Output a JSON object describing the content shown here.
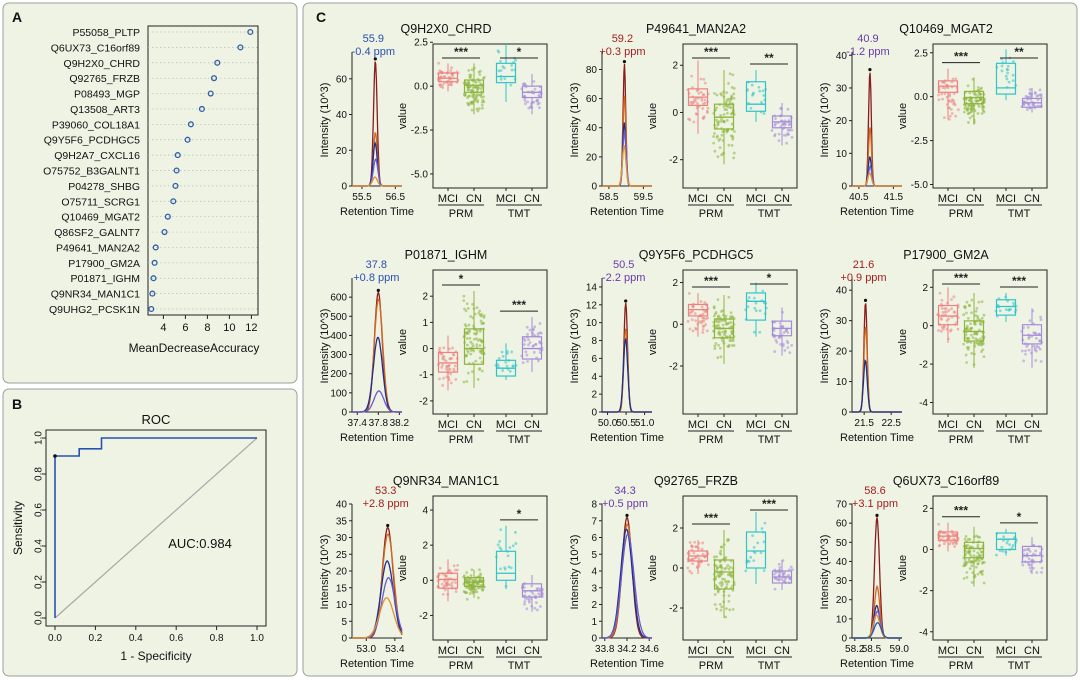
{
  "figure": {
    "panel_labels": [
      "A",
      "B",
      "C"
    ],
    "colors": {
      "panel_bg": "#eef3e4",
      "panel_border": "#9aa29a",
      "dot": "#2f5da8",
      "sig": "#222222",
      "roc_line": "#2853b3",
      "diag": "#a8a8a8",
      "chrom": [
        "#8a1c1c",
        "#d2691e",
        "#1f2f8c",
        "#6a5acd",
        "#e0942a",
        "#2a5b9c"
      ],
      "MCI_PRM": "#f08080",
      "CN_PRM": "#8db53c",
      "MCI_TMT": "#30c4c9",
      "CN_TMT": "#a58bd9",
      "label_blue": "#2c4fae",
      "label_red": "#a31f1f",
      "label_purple": "#6a3aa8"
    }
  },
  "chart_data": [
    {
      "panel": "A",
      "type": "scatter",
      "title": "",
      "xlabel": "MeanDecreaseAccuracy",
      "ylabel": "",
      "xlim": [
        2.6,
        12.6
      ],
      "xticks": [
        4,
        6,
        8,
        10,
        12
      ],
      "categories": [
        "P55058_PLTP",
        "Q6UX73_C16orf89",
        "Q9H2X0_CHRD",
        "Q92765_FRZB",
        "P08493_MGP",
        "Q13508_ART3",
        "P39060_COL18A1",
        "Q9Y5F6_PCDHGC5",
        "Q9H2A7_CXCL16",
        "O75752_B3GALNT1",
        "P04278_SHBG",
        "O75711_SCRG1",
        "Q10469_MGAT2",
        "Q86SF2_GALNT7",
        "P49641_MAN2A2",
        "P17900_GM2A",
        "P01871_IGHM",
        "Q9NR34_MAN1C1",
        "Q9UHG2_PCSK1N"
      ],
      "values": [
        11.9,
        11.0,
        8.9,
        8.6,
        8.3,
        7.5,
        6.5,
        6.2,
        5.3,
        5.2,
        5.1,
        4.9,
        4.4,
        4.1,
        3.3,
        3.2,
        3.1,
        3.0,
        2.9
      ]
    },
    {
      "panel": "B",
      "type": "line",
      "title": "ROC",
      "xlabel": "1 - Specificity",
      "ylabel": "Sensitivity",
      "xlim": [
        0,
        1
      ],
      "ylim": [
        0,
        1
      ],
      "ticks": [
        "0.0",
        "0.2",
        "0.4",
        "0.6",
        "0.8",
        "1.0"
      ],
      "annotation": "AUC:0.984",
      "x": [
        0,
        0,
        0.01,
        0.12,
        0.12,
        0.23,
        0.23,
        1.0
      ],
      "y": [
        0,
        0.9,
        0.9,
        0.9,
        0.94,
        0.94,
        1.0,
        1.0
      ]
    },
    {
      "panel": "C",
      "type": "area",
      "box_ylabel": "value",
      "chrom_ylabel": "Intensity (10^3)",
      "chrom_xlabel": "Retention Time",
      "groups": [
        "PRM",
        "TMT"
      ],
      "box_categories": [
        "MCI",
        "CN",
        "MCI",
        "CN"
      ],
      "proteins": [
        {
          "name": "Q9H2X0_CHRD",
          "label_lines": [
            "55.9",
            "-0.4 ppm"
          ],
          "label_color": "blue",
          "chrom": {
            "xlim": [
              55.2,
              56.7
            ],
            "xticks": [
              55.5,
              56.5
            ],
            "xtick_labels": [
              "55.5",
              "56.5"
            ],
            "ylim": [
              0,
              75
            ],
            "yticks": [
              0,
              20,
              40,
              60
            ],
            "center": 55.9,
            "sigma": 0.055,
            "heights": [
              70,
              30,
              24,
              15,
              5
            ]
          },
          "box": {
            "ylim": [
              -5.8,
              2.4
            ],
            "yticks": [
              -5.0,
              -2.5,
              0.0,
              2.5
            ],
            "ytick_labels": [
              "-5.0",
              "-2.5",
              "0.0",
              "2.5"
            ],
            "stats": [
              [
                -0.3,
                0.25,
                0.45,
                0.75,
                1.3
              ],
              [
                -1.6,
                -0.35,
                0.05,
                0.35,
                1.3
              ],
              [
                -0.9,
                0.2,
                0.55,
                1.3,
                2.4
              ],
              [
                -1.6,
                -0.65,
                -0.35,
                0.0,
                0.7
              ]
            ],
            "sig": [
              "***",
              "*"
            ]
          }
        },
        {
          "name": "P49641_MAN2A2",
          "label_lines": [
            "59.2",
            "+0.3 ppm"
          ],
          "label_color": "red",
          "chrom": {
            "xlim": [
              58.3,
              59.75
            ],
            "xticks": [
              58.5,
              59.5
            ],
            "xtick_labels": [
              "58.5",
              "59.5"
            ],
            "ylim": [
              0,
              92
            ],
            "yticks": [
              0,
              20,
              40,
              60,
              80
            ],
            "center": 58.95,
            "sigma": 0.04,
            "heights": [
              84,
              62,
              44,
              38,
              28
            ]
          },
          "box": {
            "ylim": [
              -3.2,
              2.9
            ],
            "yticks": [
              -2,
              0,
              2
            ],
            "ytick_labels": [
              "-2",
              "0",
              "2"
            ],
            "stats": [
              [
                -0.9,
                0.3,
                0.65,
                1.0,
                2.2
              ],
              [
                -2.2,
                -0.7,
                -0.2,
                0.35,
                1.8
              ],
              [
                -0.4,
                0.05,
                0.35,
                1.3,
                1.8
              ],
              [
                -1.4,
                -0.65,
                -0.4,
                -0.15,
                0.4
              ]
            ],
            "sig": [
              "***",
              "**"
            ]
          }
        },
        {
          "name": "Q10469_MGAT2",
          "label_lines": [
            "40.9",
            "-1.2 ppm"
          ],
          "label_color": "purple",
          "chrom": {
            "xlim": [
              40.3,
              41.75
            ],
            "xticks": [
              40.5,
              41.5
            ],
            "xtick_labels": [
              "40.5",
              "41.5"
            ],
            "ylim": [
              0,
              41
            ],
            "yticks": [
              0,
              10,
              20,
              30,
              40
            ],
            "center": 40.82,
            "sigma": 0.04,
            "heights": [
              35,
              18,
              9,
              6,
              4
            ]
          },
          "box": {
            "ylim": [
              -5.2,
              3.0
            ],
            "yticks": [
              -5.0,
              -2.5,
              0.0,
              2.5
            ],
            "ytick_labels": [
              "-5.0",
              "-2.5",
              "0.0",
              "2.5"
            ],
            "stats": [
              [
                -1.3,
                0.25,
                0.6,
                0.9,
                1.6
              ],
              [
                -1.6,
                -0.4,
                -0.05,
                0.3,
                1.1
              ],
              [
                -0.2,
                0.15,
                0.5,
                1.9,
                2.7
              ],
              [
                -0.9,
                -0.6,
                -0.35,
                -0.1,
                0.5
              ]
            ],
            "sig": [
              "***",
              "**"
            ]
          }
        },
        {
          "name": "P01871_IGHM",
          "label_lines": [
            "37.8",
            "+0.8 ppm"
          ],
          "label_color": "blue",
          "chrom": {
            "xlim": [
              37.3,
              38.25
            ],
            "xticks": [
              37.4,
              37.8,
              38.2
            ],
            "xtick_labels": [
              "37.4",
              "37.8",
              "38.2"
            ],
            "ylim": [
              0,
              700
            ],
            "yticks": [
              0,
              100,
              200,
              300,
              400,
              500,
              600
            ],
            "center": 37.8,
            "sigma": 0.075,
            "heights": [
              625,
              590,
              390,
              110
            ]
          },
          "box": {
            "ylim": [
              -2.5,
              3.0
            ],
            "yticks": [
              -2,
              -1,
              0,
              1,
              2
            ],
            "ytick_labels": [
              "-2",
              "-1",
              "0",
              "1",
              "2"
            ],
            "stats": [
              [
                -1.6,
                -0.9,
                -0.55,
                -0.15,
                0.5
              ],
              [
                -1.5,
                -0.6,
                0.0,
                0.75,
                2.2
              ],
              [
                -1.2,
                -1.05,
                -0.75,
                -0.45,
                0.2
              ],
              [
                -0.9,
                -0.4,
                0.0,
                0.45,
                1.2
              ]
            ],
            "sig": [
              "*",
              "***"
            ]
          }
        },
        {
          "name": "Q9Y5F6_PCDHGC5",
          "label_lines": [
            "50.5",
            "-2.2 ppm"
          ],
          "label_color": "purple",
          "chrom": {
            "xlim": [
              49.85,
              51.2
            ],
            "xticks": [
              50.0,
              50.5,
              51.0
            ],
            "xtick_labels": [
              "50.0",
              "50.5",
              "51.0"
            ],
            "ylim": [
              0,
              15
            ],
            "yticks": [
              0,
              2,
              4,
              6,
              8,
              10,
              12,
              14
            ],
            "center": 50.49,
            "sigma": 0.05,
            "heights": [
              12.2,
              9.3,
              8.2
            ]
          },
          "box": {
            "ylim": [
              -4.3,
              2.6
            ],
            "yticks": [
              -2,
              0,
              2
            ],
            "ytick_labels": [
              "-2",
              "0",
              "2"
            ],
            "stats": [
              [
                -0.6,
                0.4,
                0.7,
                0.95,
                1.5
              ],
              [
                -1.9,
                -0.65,
                -0.2,
                0.25,
                1.4
              ],
              [
                -0.6,
                0.2,
                1.1,
                1.5,
                2.0
              ],
              [
                -1.5,
                -0.55,
                -0.2,
                0.15,
                0.8
              ]
            ],
            "sig": [
              "***",
              "*"
            ]
          }
        },
        {
          "name": "P17900_GM2A",
          "label_lines": [
            "21.6",
            "+0.9 ppm"
          ],
          "label_color": "red",
          "chrom": {
            "xlim": [
              21.05,
              22.9
            ],
            "xticks": [
              21.5,
              22.5
            ],
            "xtick_labels": [
              "21.5",
              "22.5"
            ],
            "ylim": [
              0,
              44
            ],
            "yticks": [
              0,
              10,
              20,
              30,
              40
            ],
            "center": 21.55,
            "sigma": 0.06,
            "heights": [
              36,
              28,
              17
            ]
          },
          "box": {
            "ylim": [
              -4.6,
              2.9
            ],
            "yticks": [
              -4,
              -2,
              0,
              2
            ],
            "ytick_labels": [
              "-4",
              "-2",
              "0",
              "2"
            ],
            "stats": [
              [
                -0.9,
                0.05,
                0.5,
                1.05,
                2.0
              ],
              [
                -2.2,
                -0.8,
                -0.3,
                0.25,
                1.7
              ],
              [
                0.2,
                0.55,
                1.0,
                1.35,
                1.7
              ],
              [
                -2.2,
                -0.95,
                -0.5,
                0.05,
                0.9
              ]
            ],
            "sig": [
              "***",
              "***"
            ]
          }
        },
        {
          "name": "Q9NR34_MAN1C1",
          "label_lines": [
            "53.3",
            "+2.8 ppm"
          ],
          "label_color": "red",
          "chrom": {
            "xlim": [
              52.8,
              53.5
            ],
            "xticks": [
              53.0,
              53.4
            ],
            "xtick_labels": [
              "53.0",
              "53.4"
            ],
            "ylim": [
              0,
              40
            ],
            "yticks": [
              0,
              5,
              10,
              15,
              20,
              25,
              30,
              35,
              40
            ],
            "center": 53.3,
            "sigma": 0.075,
            "heights": [
              33,
              31,
              23,
              18,
              12
            ]
          },
          "box": {
            "ylim": [
              -3.4,
              4.8
            ],
            "yticks": [
              -2,
              0,
              2,
              4
            ],
            "ytick_labels": [
              "-2",
              "0",
              "2",
              "4"
            ],
            "stats": [
              [
                -1.2,
                -0.45,
                0.05,
                0.4,
                1.2
              ],
              [
                -1.0,
                -0.35,
                -0.1,
                0.15,
                0.6
              ],
              [
                -0.5,
                0.0,
                0.4,
                1.65,
                3.1
              ],
              [
                -1.8,
                -0.95,
                -0.6,
                -0.2,
                0.3
              ]
            ],
            "sig": [
              "*"
            ]
          }
        },
        {
          "name": "Q92765_FRZB",
          "label_lines": [
            "34.3",
            "+0.5 ppm"
          ],
          "label_color": "purple",
          "chrom": {
            "xlim": [
              33.75,
              34.65
            ],
            "xticks": [
              33.8,
              34.2,
              34.6
            ],
            "xtick_labels": [
              "33.8",
              "34.2",
              "34.6"
            ],
            "ylim": [
              0,
              8
            ],
            "yticks": [
              0,
              1,
              2,
              3,
              4,
              5,
              6,
              7,
              8
            ],
            "center": 34.2,
            "sigma": 0.09,
            "heights": [
              7.2,
              6.8,
              6.5,
              6.2
            ]
          },
          "box": {
            "ylim": [
              -3.6,
              3.6
            ],
            "yticks": [
              -2,
              0,
              2
            ],
            "ytick_labels": [
              "-2",
              "0",
              "2"
            ],
            "stats": [
              [
                -0.3,
                0.35,
                0.6,
                0.85,
                1.4
              ],
              [
                -2.5,
                -1.05,
                -0.2,
                0.4,
                1.9
              ],
              [
                -0.8,
                0.0,
                0.85,
                1.8,
                2.8
              ],
              [
                -1.1,
                -0.75,
                -0.45,
                -0.15,
                0.4
              ]
            ],
            "sig": [
              "***",
              "***"
            ]
          }
        },
        {
          "name": "Q6UX73_C16orf89",
          "label_lines": [
            "58.6",
            "+3.1 ppm"
          ],
          "label_color": "red",
          "chrom": {
            "xlim": [
              58.15,
              59.05
            ],
            "xticks": [
              58.2,
              58.5,
              59.0
            ],
            "xtick_labels": [
              "58.2",
              "58.5",
              "59.0"
            ],
            "ylim": [
              0,
              70
            ],
            "yticks": [
              0,
              10,
              20,
              30,
              40,
              50,
              60,
              70
            ],
            "center": 58.6,
            "sigma": 0.045,
            "heights": [
              63,
              27,
              17,
              14,
              12,
              8
            ]
          },
          "box": {
            "ylim": [
              -4.4,
              2.6
            ],
            "yticks": [
              -4,
              -2,
              0,
              2
            ],
            "ytick_labels": [
              "-4",
              "-2",
              "0",
              "2"
            ],
            "stats": [
              [
                -0.1,
                0.45,
                0.65,
                0.85,
                1.3
              ],
              [
                -1.8,
                -0.4,
                0.05,
                0.35,
                1.1
              ],
              [
                -0.3,
                0.0,
                0.5,
                0.8,
                1.0
              ],
              [
                -1.2,
                -0.6,
                -0.3,
                0.15,
                0.6
              ]
            ],
            "sig": [
              "***",
              "*"
            ]
          }
        }
      ]
    }
  ]
}
